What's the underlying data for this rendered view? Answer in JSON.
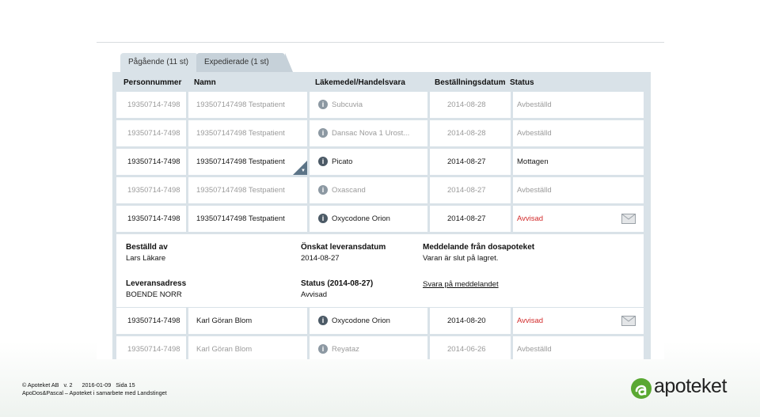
{
  "tabs": [
    {
      "label": "Pågående (11 st)"
    },
    {
      "label": "Expedierade (1 st)"
    }
  ],
  "columns": [
    "Personnummer",
    "Namn",
    "Läkemedel/Handelsvara",
    "Beställningsdatum",
    "Status"
  ],
  "rows": [
    {
      "pn": "19350714-7498",
      "name": "193507147498 Testpatient",
      "medicine": "Subcuvia",
      "date": "2014-08-28",
      "status": "Avbeställd"
    },
    {
      "pn": "19350714-7498",
      "name": "193507147498 Testpatient",
      "medicine": "Dansac Nova 1 Urost...",
      "date": "2014-08-28",
      "status": "Avbeställd"
    },
    {
      "pn": "19350714-7498",
      "name": "193507147498 Testpatient",
      "medicine": "Picato",
      "date": "2014-08-27",
      "status": "Mottagen"
    },
    {
      "pn": "19350714-7498",
      "name": "193507147498 Testpatient",
      "medicine": "Oxascand",
      "date": "2014-08-27",
      "status": "Avbeställd"
    },
    {
      "pn": "19350714-7498",
      "name": "193507147498 Testpatient",
      "medicine": "Oxycodone Orion",
      "date": "2014-08-27",
      "status": "Avvisad"
    },
    {
      "pn": "19350714-7498",
      "name": "Karl Göran Blom",
      "medicine": "Oxycodone Orion",
      "date": "2014-08-20",
      "status": "Avvisad"
    },
    {
      "pn": "19350714-7498",
      "name": "Karl Göran Blom",
      "medicine": "Reyataz",
      "date": "2014-06-26",
      "status": "Avbeställd"
    }
  ],
  "detail": {
    "ordered_by_label": "Beställd av",
    "ordered_by_value": "Lars Läkare",
    "requested_date_label": "Önskat leveransdatum",
    "requested_date_value": "2014-08-27",
    "message_label": "Meddelande från dosapoteket",
    "message_value": "Varan är slut på lagret.",
    "address_label": "Leveransadress",
    "address_value": "BOENDE NORR",
    "status_label": "Status (2014-08-27)",
    "status_value": "Avvisad",
    "reply_link": "Svara på meddelandet"
  },
  "footer": {
    "line1": "© Apoteket AB   v. 2      2016-01-09   Sida 15",
    "line2": "ApoDos&Pascal – Apoteket i samarbete med Landstinget"
  },
  "logo": {
    "text": "apoteket"
  },
  "colors": {
    "accent_green": "#5aa832",
    "status_red": "#d22a2a",
    "panel": "#d9e2e8"
  }
}
